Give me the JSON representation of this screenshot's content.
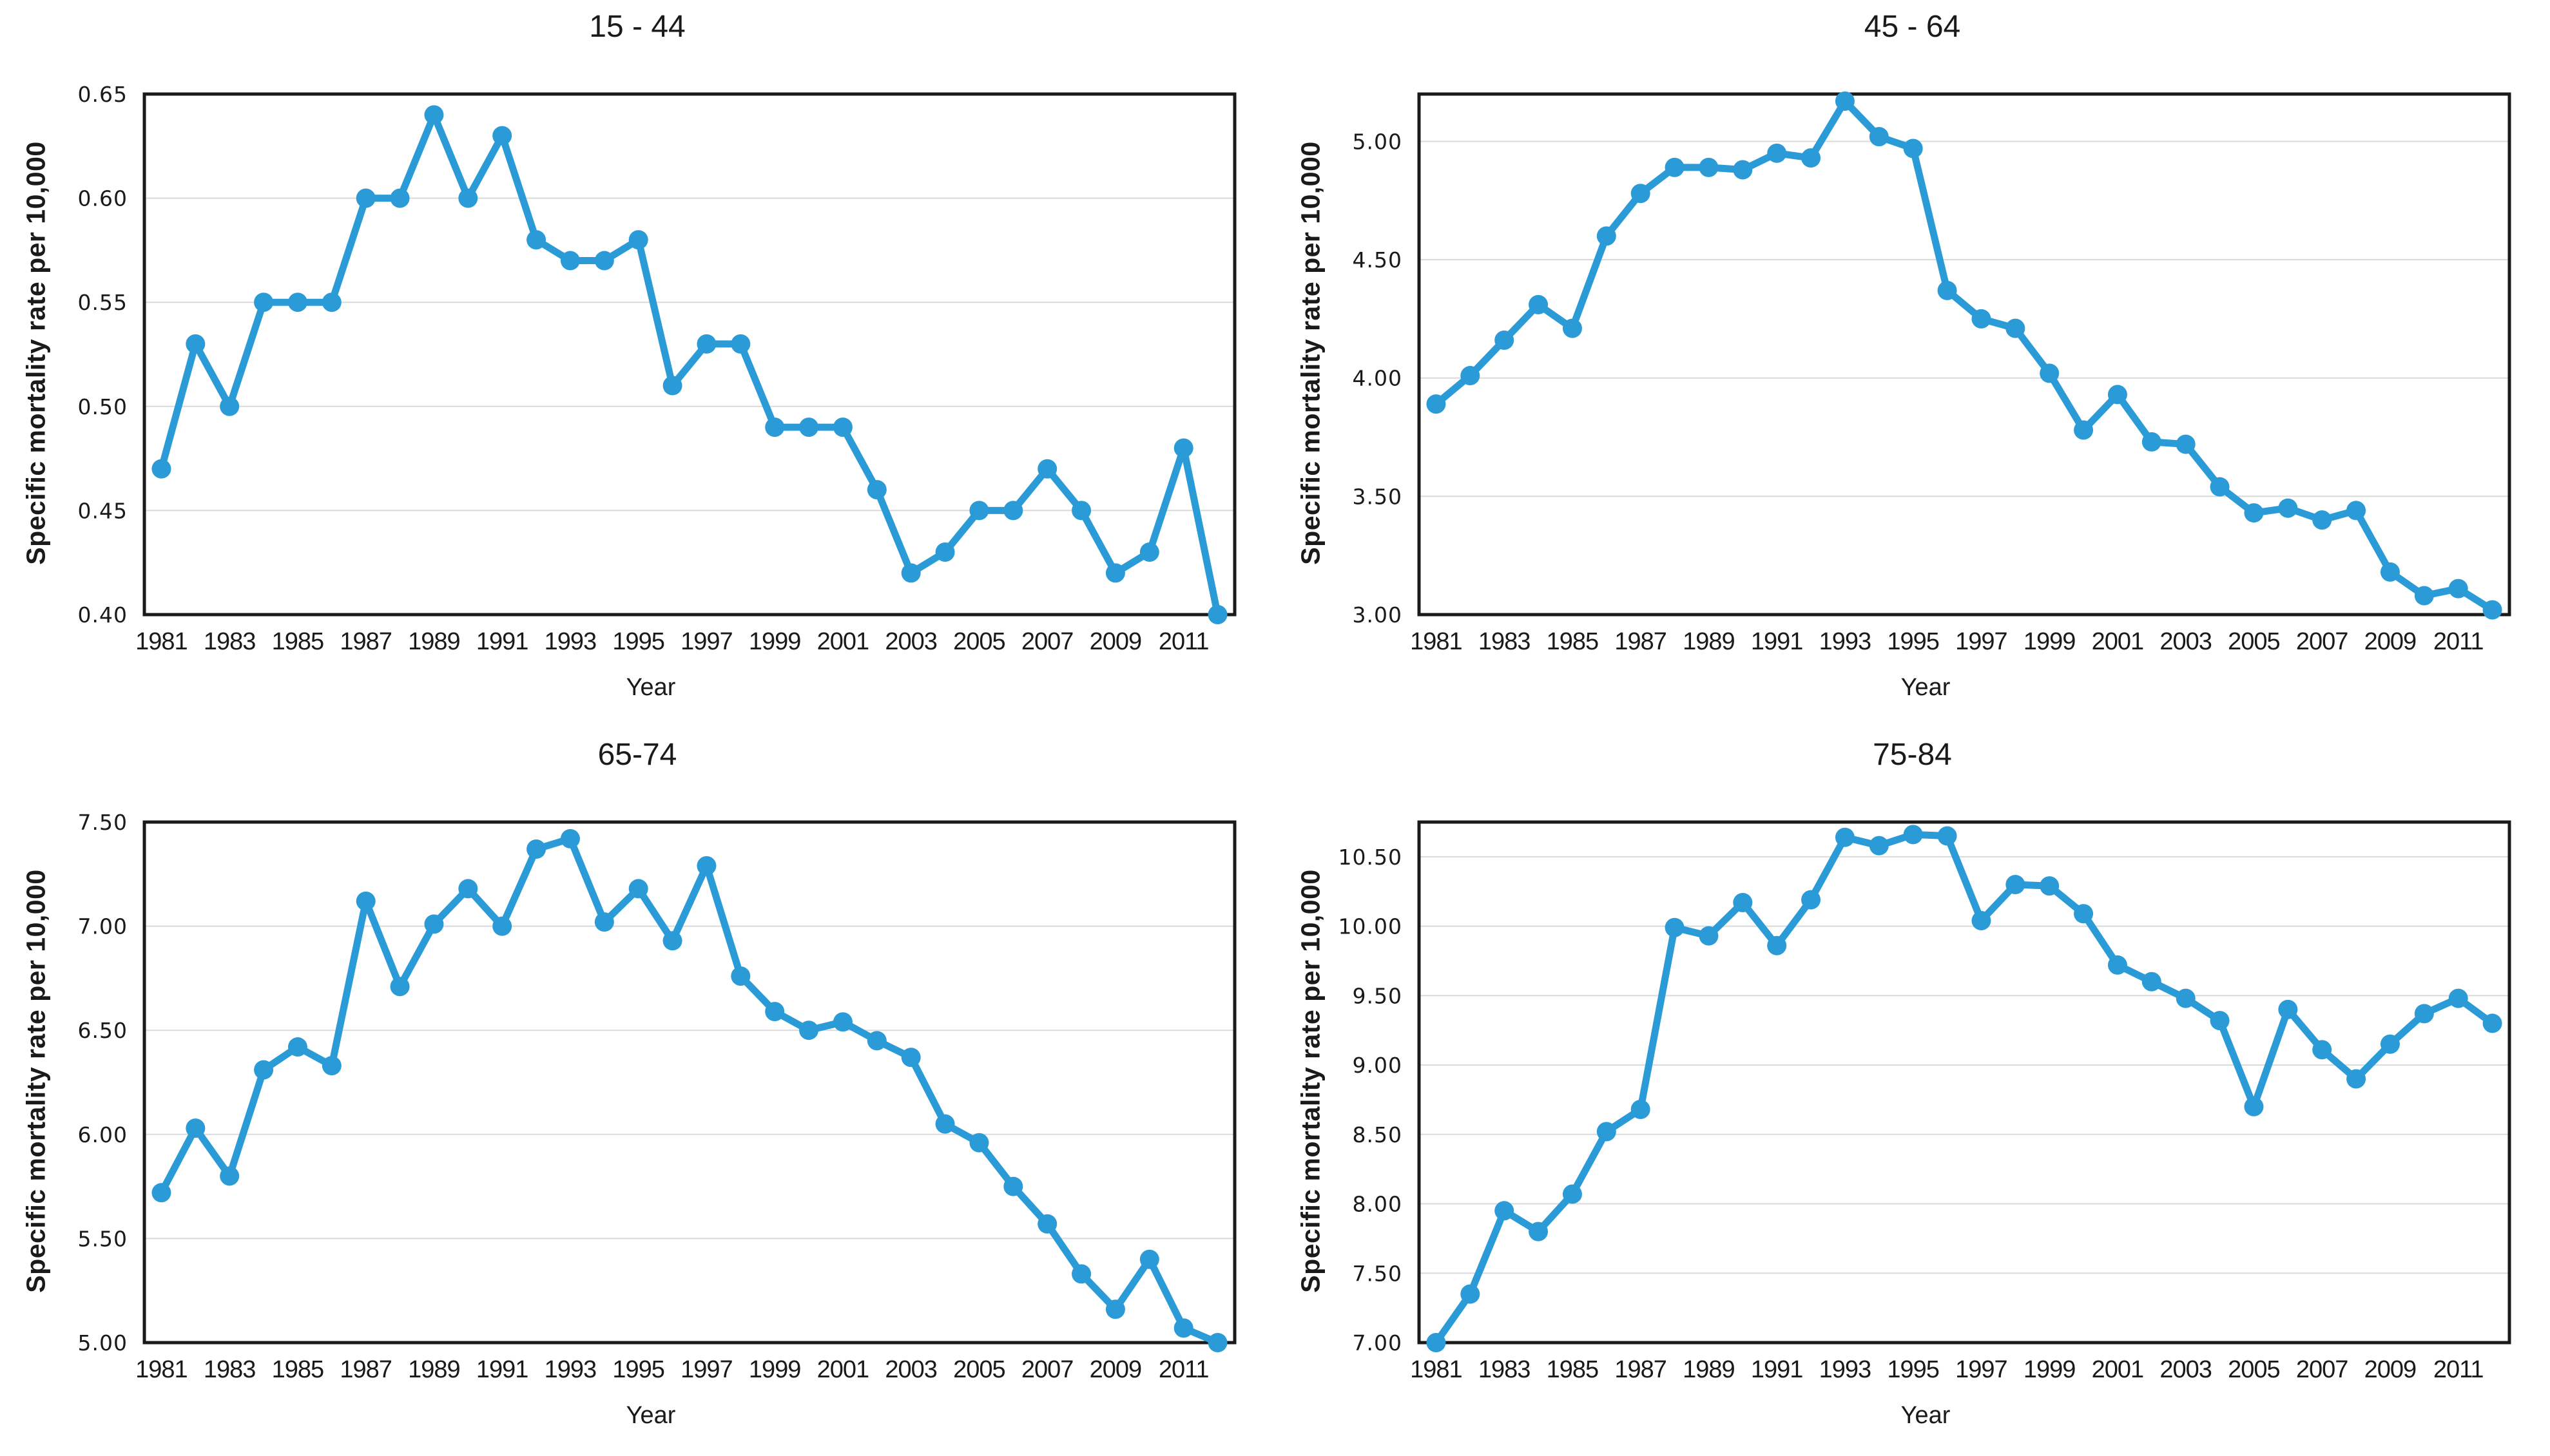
{
  "style": {
    "background": "#FFFFFF",
    "line_color": "#2B9BD7",
    "grid_color": "#DADADA",
    "frame_color": "#1A1A1A",
    "text_color": "#1A1A1A",
    "marker": "circle"
  },
  "chart_data": [
    {
      "type": "line",
      "title": "15 - 44",
      "xlabel": "Year",
      "ylabel": "Specific mortality rate per 10,000",
      "x": [
        1981,
        1982,
        1983,
        1984,
        1985,
        1986,
        1987,
        1988,
        1989,
        1990,
        1991,
        1992,
        1993,
        1994,
        1995,
        1996,
        1997,
        1998,
        1999,
        2000,
        2001,
        2002,
        2003,
        2004,
        2005,
        2006,
        2007,
        2008,
        2009,
        2010,
        2011,
        2012
      ],
      "values": [
        0.47,
        0.53,
        0.5,
        0.55,
        0.55,
        0.55,
        0.6,
        0.6,
        0.64,
        0.6,
        0.63,
        0.58,
        0.57,
        0.57,
        0.58,
        0.51,
        0.53,
        0.53,
        0.49,
        0.49,
        0.49,
        0.46,
        0.42,
        0.43,
        0.45,
        0.45,
        0.47,
        0.45,
        0.42,
        0.43,
        0.48,
        0.4
      ],
      "ylim": [
        0.4,
        0.65
      ],
      "yticks": [
        0.4,
        0.45,
        0.5,
        0.55,
        0.6,
        0.65
      ],
      "ytick_labels": [
        "0.40",
        "0.45",
        "0.50",
        "0.55",
        "0.60",
        "0.65"
      ],
      "xtick_labels": [
        "1981",
        "1983",
        "1985",
        "1987",
        "1989",
        "1991",
        "1993",
        "1995",
        "1997",
        "1999",
        "2001",
        "2003",
        "2005",
        "2007",
        "2009",
        "2011"
      ],
      "grid": true,
      "legend": "none"
    },
    {
      "type": "line",
      "title": "45 - 64",
      "xlabel": "Year",
      "ylabel": "Specific mortality rate per 10,000",
      "x": [
        1981,
        1982,
        1983,
        1984,
        1985,
        1986,
        1987,
        1988,
        1989,
        1990,
        1991,
        1992,
        1993,
        1994,
        1995,
        1996,
        1997,
        1998,
        1999,
        2000,
        2001,
        2002,
        2003,
        2004,
        2005,
        2006,
        2007,
        2008,
        2009,
        2010,
        2011,
        2012
      ],
      "values": [
        3.89,
        4.01,
        4.16,
        4.31,
        4.21,
        4.6,
        4.78,
        4.89,
        4.89,
        4.88,
        4.95,
        4.93,
        5.17,
        5.02,
        4.97,
        4.37,
        4.25,
        4.21,
        4.02,
        3.78,
        3.93,
        3.73,
        3.72,
        3.54,
        3.43,
        3.45,
        3.4,
        3.44,
        3.18,
        3.08,
        3.11,
        3.02
      ],
      "ylim": [
        3.0,
        5.2
      ],
      "yticks": [
        3.0,
        3.5,
        4.0,
        4.5,
        5.0
      ],
      "ytick_labels": [
        "3.00",
        "3.50",
        "4.00",
        "4.50",
        "5.00"
      ],
      "xtick_labels": [
        "1981",
        "1983",
        "1985",
        "1987",
        "1989",
        "1991",
        "1993",
        "1995",
        "1997",
        "1999",
        "2001",
        "2003",
        "2005",
        "2007",
        "2009",
        "2011"
      ],
      "grid": true,
      "legend": "none"
    },
    {
      "type": "line",
      "title": "65-74",
      "xlabel": "Year",
      "ylabel": "Specific mortality rate per 10,000",
      "x": [
        1981,
        1982,
        1983,
        1984,
        1985,
        1986,
        1987,
        1988,
        1989,
        1990,
        1991,
        1992,
        1993,
        1994,
        1995,
        1996,
        1997,
        1998,
        1999,
        2000,
        2001,
        2002,
        2003,
        2004,
        2005,
        2006,
        2007,
        2008,
        2009,
        2010,
        2011,
        2012
      ],
      "values": [
        5.72,
        6.03,
        5.8,
        6.31,
        6.42,
        6.33,
        7.12,
        6.71,
        7.01,
        7.18,
        7.0,
        7.37,
        7.42,
        7.02,
        7.18,
        6.93,
        7.29,
        6.76,
        6.59,
        6.5,
        6.54,
        6.45,
        6.37,
        6.05,
        5.96,
        5.75,
        5.57,
        5.33,
        5.16,
        5.4,
        5.07,
        5.0
      ],
      "ylim": [
        5.0,
        7.5
      ],
      "yticks": [
        5.0,
        5.5,
        6.0,
        6.5,
        7.0,
        7.5
      ],
      "ytick_labels": [
        "5.00",
        "5.50",
        "6.00",
        "6.50",
        "7.00",
        "7.50"
      ],
      "xtick_labels": [
        "1981",
        "1983",
        "1985",
        "1987",
        "1989",
        "1991",
        "1993",
        "1995",
        "1997",
        "1999",
        "2001",
        "2003",
        "2005",
        "2007",
        "2009",
        "2011"
      ],
      "grid": true,
      "legend": "none"
    },
    {
      "type": "line",
      "title": "75-84",
      "xlabel": "Year",
      "ylabel": "Specific mortality rate per 10,000",
      "x": [
        1981,
        1982,
        1983,
        1984,
        1985,
        1986,
        1987,
        1988,
        1989,
        1990,
        1991,
        1992,
        1993,
        1994,
        1995,
        1996,
        1997,
        1998,
        1999,
        2000,
        2001,
        2002,
        2003,
        2004,
        2005,
        2006,
        2007,
        2008,
        2009,
        2010,
        2011,
        2012
      ],
      "values": [
        7.0,
        7.35,
        7.95,
        7.8,
        8.07,
        8.52,
        8.68,
        9.99,
        9.93,
        10.17,
        9.86,
        10.19,
        10.64,
        10.58,
        10.66,
        10.65,
        10.04,
        10.3,
        10.29,
        10.09,
        9.72,
        9.6,
        9.48,
        9.32,
        8.7,
        9.4,
        9.11,
        8.9,
        9.15,
        9.37,
        9.48,
        9.3
      ],
      "ylim": [
        7.0,
        10.75
      ],
      "yticks": [
        7.0,
        7.5,
        8.0,
        8.5,
        9.0,
        9.5,
        10.0,
        10.5
      ],
      "ytick_labels": [
        "7.00",
        "7.50",
        "8.00",
        "8.50",
        "9.00",
        "9.50",
        "10.00",
        "10.50"
      ],
      "xtick_labels": [
        "1981",
        "1983",
        "1985",
        "1987",
        "1989",
        "1991",
        "1993",
        "1995",
        "1997",
        "1999",
        "2001",
        "2003",
        "2005",
        "2007",
        "2009",
        "2011"
      ],
      "grid": true,
      "legend": "none"
    }
  ]
}
